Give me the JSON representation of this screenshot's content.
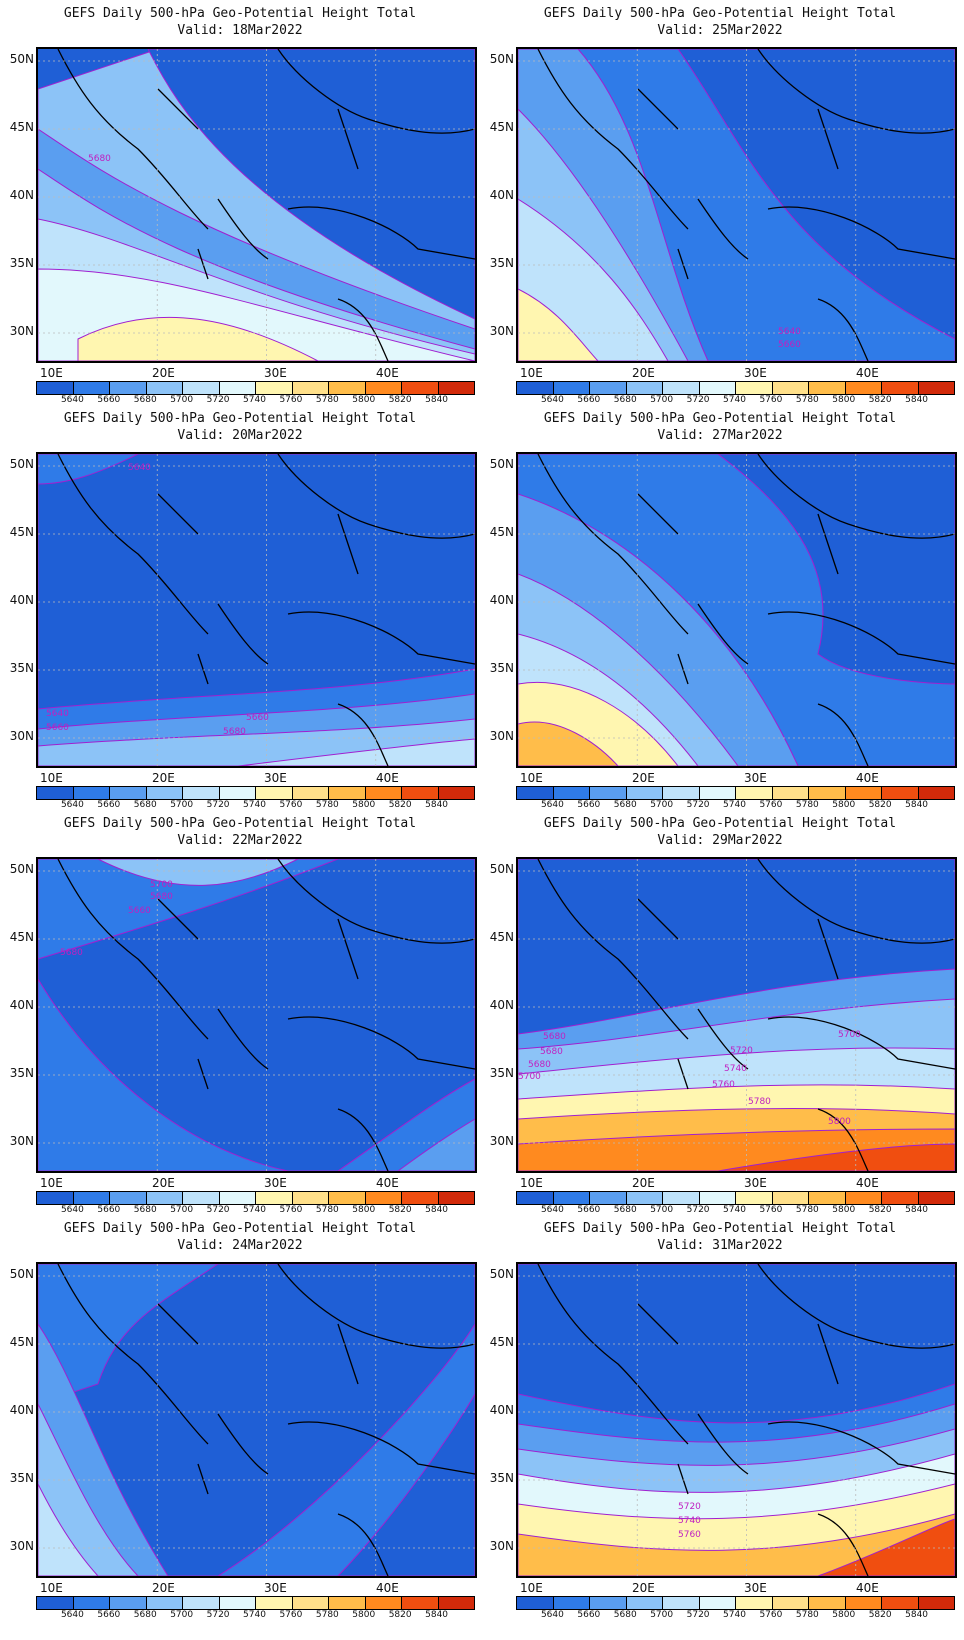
{
  "title": "GEFS Daily 500-hPa Geo-Potential Height Total",
  "lat_labels": [
    "50N",
    "45N",
    "40N",
    "35N",
    "30N"
  ],
  "lon_labels": [
    "10E",
    "20E",
    "30E",
    "40E"
  ],
  "colorbar": {
    "levels": [
      "5640",
      "5660",
      "5680",
      "5700",
      "5720",
      "5740",
      "5760",
      "5780",
      "5800",
      "5820",
      "5840"
    ],
    "colors": [
      "#1f5fd6",
      "#2f7be8",
      "#5a9ef0",
      "#8cc3f7",
      "#bfe3fb",
      "#e2f8fc",
      "#fff6b0",
      "#ffe08a",
      "#ffbd4a",
      "#ff8a1f",
      "#f04e10",
      "#d22a0a"
    ]
  },
  "contour_color": "#a020d0",
  "panels": [
    {
      "valid": "Valid: 18Mar2022",
      "labels": [
        "5680"
      ]
    },
    {
      "valid": "Valid: 25Mar2022",
      "labels": [
        "5640",
        "5660"
      ]
    },
    {
      "valid": "Valid: 20Mar2022",
      "labels": [
        "5640",
        "5640",
        "5660",
        "5660",
        "5680"
      ]
    },
    {
      "valid": "Valid: 27Mar2022",
      "labels": []
    },
    {
      "valid": "Valid: 22Mar2022",
      "labels": [
        "5700",
        "5680",
        "5660",
        "5680"
      ]
    },
    {
      "valid": "Valid: 29Mar2022",
      "labels": [
        "5680",
        "5680",
        "5680",
        "5700",
        "5700",
        "5720",
        "5740",
        "5760",
        "5780",
        "5800"
      ]
    },
    {
      "valid": "Valid: 24Mar2022",
      "labels": []
    },
    {
      "valid": "Valid: 31Mar2022",
      "labels": [
        "5720",
        "5740",
        "5760"
      ]
    }
  ]
}
